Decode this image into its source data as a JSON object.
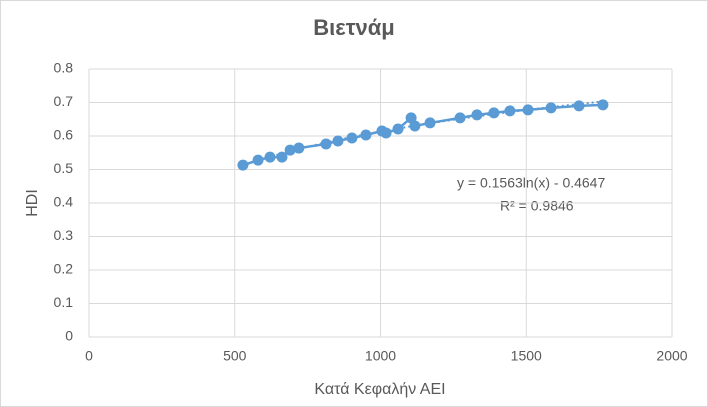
{
  "chart_data": {
    "type": "scatter",
    "title": "Βιετνάμ",
    "x_label": "Κατά Κεφαλήν ΑΕΙ",
    "y_label": "HDI",
    "series": [
      {
        "color": "#5b9bd5",
        "x": [
          528,
          580,
          621,
          662,
          690,
          720,
          813,
          854,
          902,
          950,
          1005,
          1019,
          1060,
          1105,
          1118,
          1170,
          1273,
          1331,
          1389,
          1444,
          1506,
          1585,
          1681,
          1763
        ],
        "values": [
          0.513,
          0.528,
          0.537,
          0.537,
          0.558,
          0.564,
          0.576,
          0.585,
          0.594,
          0.603,
          0.615,
          0.609,
          0.621,
          0.654,
          0.63,
          0.639,
          0.654,
          0.663,
          0.669,
          0.675,
          0.678,
          0.684,
          0.69,
          0.693
        ]
      }
    ],
    "trendline": {
      "type": "log",
      "equation": "y = 0.1563ln(x) - 0.4647",
      "r_squared": "R² = 0.9846"
    },
    "xlim": [
      0,
      2000
    ],
    "xticks": [
      0,
      500,
      1000,
      1500,
      2000
    ],
    "ylim": [
      0,
      0.8
    ],
    "yticks": [
      0,
      0.1,
      0.2,
      0.3,
      0.4,
      0.5,
      0.6,
      0.7,
      0.8
    ],
    "grid": true
  }
}
